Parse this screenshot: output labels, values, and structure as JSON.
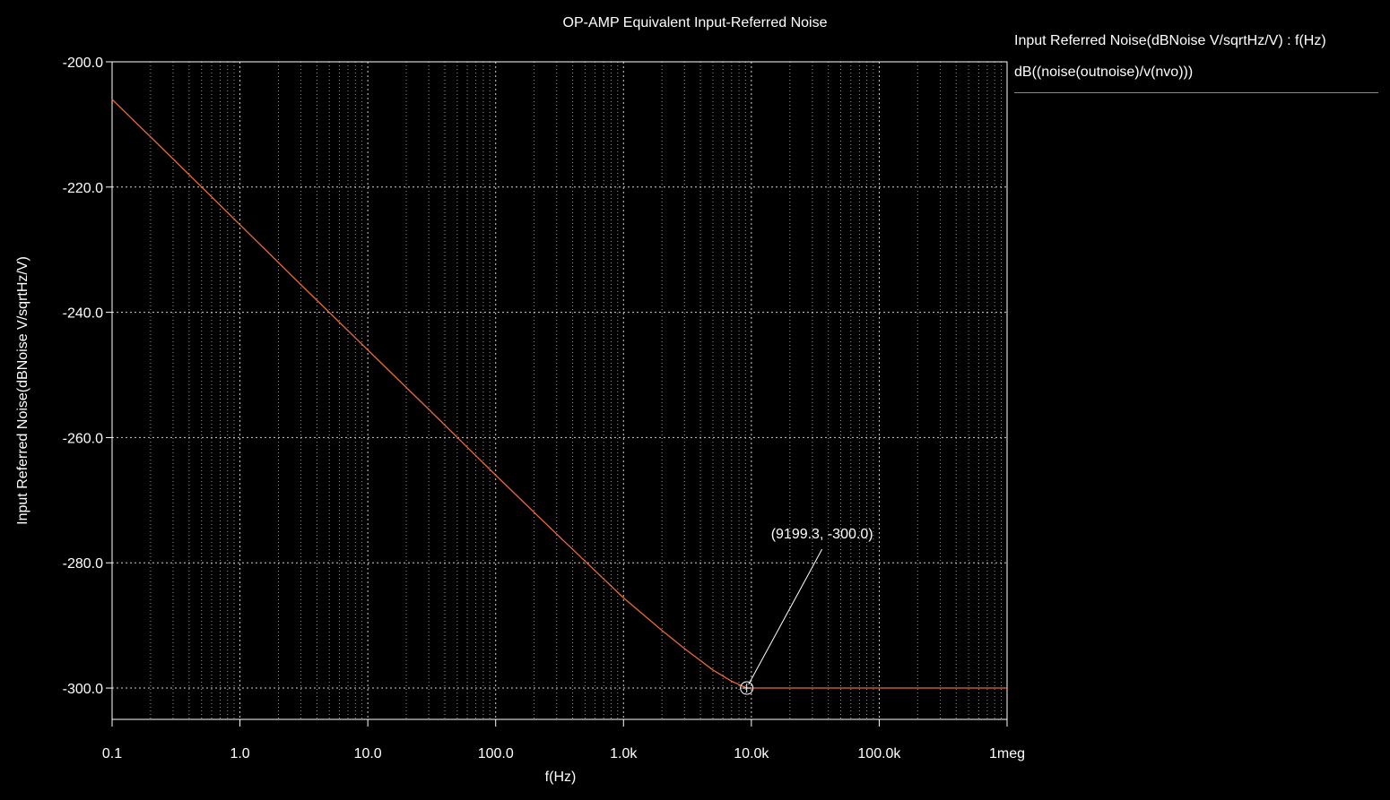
{
  "chart_data": {
    "type": "line",
    "title": "OP-AMP Equivalent Input-Referred Noise",
    "xlabel": "f(Hz)",
    "ylabel": "Input Referred Noise(dBNoise V/sqrtHz/V)",
    "x_scale": "log",
    "xlim": [
      0.1,
      1000000
    ],
    "ylim": [
      -305,
      -200
    ],
    "x_ticks": [
      {
        "value": 0.1,
        "label": "0.1"
      },
      {
        "value": 1,
        "label": "1.0"
      },
      {
        "value": 10,
        "label": "10.0"
      },
      {
        "value": 100,
        "label": "100.0"
      },
      {
        "value": 1000,
        "label": "1.0k"
      },
      {
        "value": 10000,
        "label": "10.0k"
      },
      {
        "value": 100000,
        "label": "100.0k"
      },
      {
        "value": 1000000,
        "label": "1meg"
      }
    ],
    "y_ticks": [
      {
        "value": -200,
        "label": "-200.0"
      },
      {
        "value": -220,
        "label": "-220.0"
      },
      {
        "value": -240,
        "label": "-240.0"
      },
      {
        "value": -260,
        "label": "-260.0"
      },
      {
        "value": -280,
        "label": "-280.0"
      },
      {
        "value": -300,
        "label": "-300.0"
      }
    ],
    "grid": true,
    "legend": {
      "title": "Input Referred Noise(dBNoise V/sqrtHz/V) : f(Hz)",
      "placement": "right"
    },
    "series": [
      {
        "name": "dB((noise(outnoise)/v(nvo)))",
        "color": "#e8693a",
        "x": [
          0.1,
          0.3,
          1,
          3,
          10,
          30,
          100,
          300,
          1000,
          2000,
          3000,
          5000,
          7000,
          9199.3,
          10000,
          30000,
          100000,
          300000,
          1000000
        ],
        "y": [
          -206,
          -215.5,
          -226,
          -235.6,
          -246,
          -255.5,
          -266,
          -275.4,
          -285.6,
          -290.8,
          -293.7,
          -297.1,
          -298.9,
          -300,
          -300,
          -300,
          -300,
          -300,
          -300
        ]
      }
    ],
    "annotations": [
      {
        "text": "(9199.3, -300.0)",
        "x": 9199.3,
        "y": -300
      }
    ]
  }
}
